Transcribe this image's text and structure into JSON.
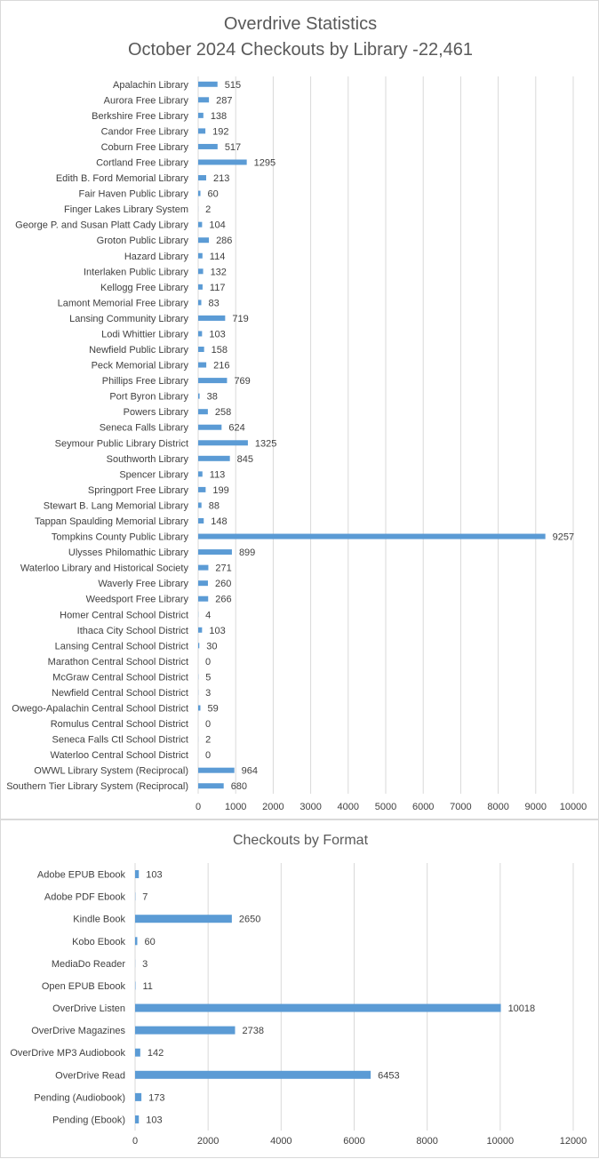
{
  "chart_data": [
    {
      "type": "bar",
      "orientation": "horizontal",
      "title": "Overdrive Statistics",
      "subtitle": "October 2024 Checkouts by Library -22,461",
      "xlim": [
        0,
        10000
      ],
      "x_ticks": [
        0,
        1000,
        2000,
        3000,
        4000,
        5000,
        6000,
        7000,
        8000,
        9000,
        10000
      ],
      "grid": true,
      "color": "#5b9bd5",
      "categories": [
        "Apalachin Library",
        "Aurora Free Library",
        "Berkshire Free Library",
        "Candor Free Library",
        "Coburn Free Library",
        "Cortland Free Library",
        "Edith B. Ford Memorial Library",
        "Fair Haven Public Library",
        "Finger Lakes Library System",
        "George P. and Susan Platt Cady Library",
        "Groton Public Library",
        "Hazard Library",
        "Interlaken Public Library",
        "Kellogg Free Library",
        "Lamont Memorial Free Library",
        "Lansing Community Library",
        "Lodi Whittier Library",
        "Newfield Public Library",
        "Peck Memorial Library",
        "Phillips Free Library",
        "Port Byron Library",
        "Powers Library",
        "Seneca Falls Library",
        "Seymour Public Library District",
        "Southworth Library",
        "Spencer Library",
        "Springport Free Library",
        "Stewart B. Lang Memorial Library",
        "Tappan Spaulding Memorial Library",
        "Tompkins County Public Library",
        "Ulysses Philomathic Library",
        "Waterloo Library and Historical Society",
        "Waverly Free Library",
        "Weedsport Free Library",
        "Homer Central School District",
        "Ithaca City School District",
        "Lansing Central School District",
        "Marathon Central School District",
        "McGraw Central School District",
        "Newfield Central School District",
        "Owego-Apalachin Central School District",
        "Romulus Central School District",
        "Seneca Falls Ctl School District",
        "Waterloo Central School District",
        "OWWL Library System (Reciprocal)",
        "Southern Tier Library System (Reciprocal)"
      ],
      "values": [
        515,
        287,
        138,
        192,
        517,
        1295,
        213,
        60,
        2,
        104,
        286,
        114,
        132,
        117,
        83,
        719,
        103,
        158,
        216,
        769,
        38,
        258,
        624,
        1325,
        845,
        113,
        199,
        88,
        148,
        9257,
        899,
        271,
        260,
        266,
        4,
        103,
        30,
        0,
        5,
        3,
        59,
        0,
        2,
        0,
        964,
        680
      ]
    },
    {
      "type": "bar",
      "orientation": "horizontal",
      "title": "Checkouts by Format",
      "xlim": [
        0,
        12000
      ],
      "x_ticks": [
        0,
        2000,
        4000,
        6000,
        8000,
        10000,
        12000
      ],
      "grid": true,
      "color": "#5b9bd5",
      "categories": [
        "Adobe EPUB Ebook",
        "Adobe PDF Ebook",
        "Kindle Book",
        "Kobo Ebook",
        "MediaDo Reader",
        "Open EPUB Ebook",
        "OverDrive Listen",
        "OverDrive Magazines",
        "OverDrive MP3 Audiobook",
        "OverDrive Read",
        "Pending (Audiobook)",
        "Pending (Ebook)"
      ],
      "values": [
        103,
        7,
        2650,
        60,
        3,
        11,
        10018,
        2738,
        142,
        6453,
        173,
        103
      ]
    }
  ]
}
